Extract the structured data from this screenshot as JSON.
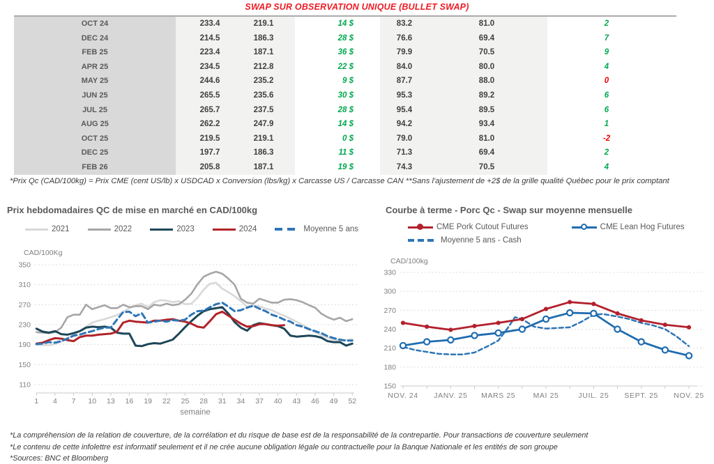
{
  "title": "SWAP SUR OBSERVATION UNIQUE (BULLET SWAP)",
  "table": {
    "rows": [
      {
        "month": "OCT 24",
        "qc_forward": "233.4",
        "qc_moyenne": "219.1",
        "swap": "14 $",
        "us_forward": "83.2",
        "us_moyenne": "81.0",
        "delta": "2",
        "delta_color": "green"
      },
      {
        "month": "DEC 24",
        "qc_forward": "214.5",
        "qc_moyenne": "186.3",
        "swap": "28 $",
        "us_forward": "76.6",
        "us_moyenne": "69.4",
        "delta": "7",
        "delta_color": "green"
      },
      {
        "month": "FEB 25",
        "qc_forward": "223.4",
        "qc_moyenne": "187.1",
        "swap": "36 $",
        "us_forward": "79.9",
        "us_moyenne": "70.5",
        "delta": "9",
        "delta_color": "green"
      },
      {
        "month": "APR 25",
        "qc_forward": "234.5",
        "qc_moyenne": "212.8",
        "swap": "22 $",
        "us_forward": "84.0",
        "us_moyenne": "80.0",
        "delta": "4",
        "delta_color": "green"
      },
      {
        "month": "MAY 25",
        "qc_forward": "244.6",
        "qc_moyenne": "235.2",
        "swap": "9 $",
        "us_forward": "87.7",
        "us_moyenne": "88.0",
        "delta": "0",
        "delta_color": "red"
      },
      {
        "month": "JUN 25",
        "qc_forward": "265.5",
        "qc_moyenne": "235.6",
        "swap": "30 $",
        "us_forward": "95.3",
        "us_moyenne": "89.2",
        "delta": "6",
        "delta_color": "green"
      },
      {
        "month": "JUL 25",
        "qc_forward": "265.7",
        "qc_moyenne": "237.5",
        "swap": "28 $",
        "us_forward": "95.4",
        "us_moyenne": "89.5",
        "delta": "6",
        "delta_color": "green"
      },
      {
        "month": "AUG 25",
        "qc_forward": "262.2",
        "qc_moyenne": "247.9",
        "swap": "14 $",
        "us_forward": "94.2",
        "us_moyenne": "93.4",
        "delta": "1",
        "delta_color": "green"
      },
      {
        "month": "OCT 25",
        "qc_forward": "219.5",
        "qc_moyenne": "219.1",
        "swap": "0 $",
        "us_forward": "79.0",
        "us_moyenne": "81.0",
        "delta": "-2",
        "delta_color": "red"
      },
      {
        "month": "DEC 25",
        "qc_forward": "197.7",
        "qc_moyenne": "186.3",
        "swap": "11 $",
        "us_forward": "71.3",
        "us_moyenne": "69.4",
        "delta": "2",
        "delta_color": "green"
      },
      {
        "month": "FEB 26",
        "qc_forward": "205.8",
        "qc_moyenne": "187.1",
        "swap": "19 $",
        "us_forward": "74.3",
        "us_moyenne": "70.5",
        "delta": "4",
        "delta_color": "green"
      }
    ],
    "footnote": "*Prix Qc (CAD/100kg) = Prix CME (cent US/lb) x USDCAD x Conversion (lbs/kg) x Carcasse US / Carcasse CAN **Sans l'ajustement de +2$ de la grille qualité Québec pour le prix comptant"
  },
  "chart_data": [
    {
      "type": "line",
      "title": "Prix hebdomadaires QC de mise en marché en CAD/100kg",
      "ylabel": "CAD/100Kg",
      "xlabel": "semaine",
      "ylim": [
        110,
        350
      ],
      "y_ticks": [
        110,
        150,
        190,
        230,
        270,
        310,
        350
      ],
      "x_ticks": [
        1,
        4,
        7,
        10,
        13,
        16,
        19,
        22,
        25,
        28,
        31,
        34,
        37,
        40,
        43,
        46,
        49,
        52
      ],
      "grid": "dashed-horizontal",
      "legend_position": "top",
      "series": [
        {
          "name": "2021",
          "color": "#d8d8d8",
          "style": "solid",
          "start_week": 1,
          "values": [
            190,
            189,
            189,
            191,
            196,
            203,
            210,
            217,
            226,
            234,
            238,
            241,
            245,
            249,
            256,
            263,
            269,
            272,
            265,
            275,
            279,
            278,
            275,
            277,
            271,
            272,
            284,
            300,
            312,
            314,
            302,
            295,
            287,
            277,
            266,
            268,
            267,
            262,
            259,
            253,
            248,
            242,
            236,
            229,
            222,
            215,
            209,
            204,
            200,
            198,
            199,
            201
          ]
        },
        {
          "name": "2022",
          "color": "#a6a6a6",
          "style": "solid",
          "start_week": 1,
          "values": [
            215,
            214,
            213,
            215,
            224,
            245,
            250,
            250,
            270,
            261,
            265,
            269,
            263,
            263,
            270,
            265,
            267,
            267,
            261,
            270,
            268,
            272,
            269,
            271,
            280,
            292,
            311,
            326,
            332,
            336,
            332,
            322,
            310,
            282,
            274,
            272,
            282,
            278,
            274,
            274,
            280,
            281,
            279,
            275,
            269,
            264,
            252,
            245,
            240,
            244,
            237,
            241
          ]
        },
        {
          "name": "2023",
          "color": "#1d4659",
          "style": "solid",
          "start_week": 1,
          "values": [
            222,
            216,
            214,
            217,
            211,
            210,
            213,
            217,
            224,
            226,
            225,
            226,
            224,
            214,
            212,
            212,
            188,
            187,
            191,
            193,
            192,
            196,
            200,
            212,
            225,
            237,
            248,
            257,
            261,
            263,
            265,
            252,
            235,
            224,
            218,
            229,
            233,
            231,
            229,
            227,
            222,
            208,
            206,
            207,
            208,
            207,
            204,
            197,
            195,
            195,
            188,
            192
          ]
        },
        {
          "name": "2024",
          "color": "#b02329",
          "style": "solid",
          "start_week": 1,
          "values": [
            192,
            194,
            199,
            203,
            202,
            199,
            197,
            205,
            208,
            208,
            210,
            211,
            212,
            216,
            234,
            238,
            236,
            235,
            234,
            238,
            238,
            240,
            241,
            238,
            236,
            232,
            226,
            224,
            237,
            251,
            256,
            248,
            240,
            232,
            226,
            227,
            231,
            231,
            229,
            228,
            229
          ]
        },
        {
          "name": "Moyenne 5 ans",
          "color": "#2e75b6",
          "style": "dashed",
          "start_week": 1,
          "values": [
            191,
            192,
            195,
            194,
            197,
            202,
            208,
            210,
            214,
            217,
            221,
            224,
            224,
            240,
            255,
            256,
            247,
            253,
            234,
            236,
            238,
            236,
            239,
            238,
            240,
            250,
            257,
            258,
            265,
            271,
            274,
            266,
            257,
            259,
            264,
            268,
            262,
            257,
            250,
            246,
            240,
            236,
            229,
            226,
            221,
            217,
            213,
            207,
            203,
            200,
            198,
            198
          ]
        }
      ]
    },
    {
      "type": "line",
      "title": "Courbe à terme - Porc Qc - Swap sur moyenne mensuelle",
      "ylabel": "CAD/100kg",
      "ylim": [
        150,
        330
      ],
      "y_ticks": [
        150,
        180,
        210,
        240,
        270,
        300,
        330
      ],
      "x_tick_labels": [
        "NOV. 24",
        "JANV. 25",
        "MARS 25",
        "MAI 25",
        "JUIL. 25",
        "SEPT. 25",
        "NOV. 25"
      ],
      "x_tick_positions": [
        0,
        2,
        4,
        6,
        8,
        10,
        12
      ],
      "months_span": 13,
      "grid": "dashed-horizontal",
      "legend_position": "top",
      "series": [
        {
          "name": "Moyenne 5 ans - Cash",
          "color": "#2e75b6",
          "style": "dashed",
          "marker": "none",
          "x": [
            0,
            0.5,
            1,
            1.5,
            2,
            2.5,
            3,
            3.5,
            4,
            4.4,
            4.7,
            5,
            5.5,
            6,
            6.5,
            7,
            7.5,
            8,
            8.4,
            9,
            9.5,
            10,
            10.5,
            11,
            11.5,
            12
          ],
          "values": [
            212,
            207,
            204,
            201,
            200,
            200,
            203,
            212,
            222,
            242,
            259,
            256,
            244,
            241,
            242,
            243,
            252,
            263,
            264,
            260,
            256,
            250,
            246,
            240,
            228,
            213
          ]
        },
        {
          "name": "CME Pork Cutout Futures",
          "color": "#b3202c",
          "style": "solid",
          "marker": "filled-circle",
          "x": [
            0,
            1,
            2,
            3,
            4,
            5,
            6,
            7,
            8,
            9,
            10,
            11,
            12
          ],
          "values": [
            250,
            244,
            239,
            245,
            250,
            256,
            272,
            283,
            280,
            265,
            254,
            247,
            243
          ]
        },
        {
          "name": "CME Lean Hog Futures",
          "color": "#1f6cb0",
          "style": "solid",
          "marker": "open-circle",
          "x": [
            0,
            1,
            2,
            3,
            4,
            5,
            6,
            7,
            8,
            9,
            10,
            11,
            12
          ],
          "values": [
            214,
            220,
            223,
            230,
            234,
            240,
            256,
            266,
            265,
            240,
            220,
            207,
            198
          ]
        }
      ]
    }
  ],
  "footer": {
    "lines": [
      "*La compréhension de la relation de couverture, de la corrélation et du risque de base est de la responsabilité de la contrepartie. Pour transactions de couverture seulement",
      "*Le contenu de cette infolettre est informatif seulement et il ne crée aucune obligation légale ou contractuelle pour la Banque Nationale et les entités de son groupe",
      "*Sources: BNC et Bloomberg"
    ]
  }
}
